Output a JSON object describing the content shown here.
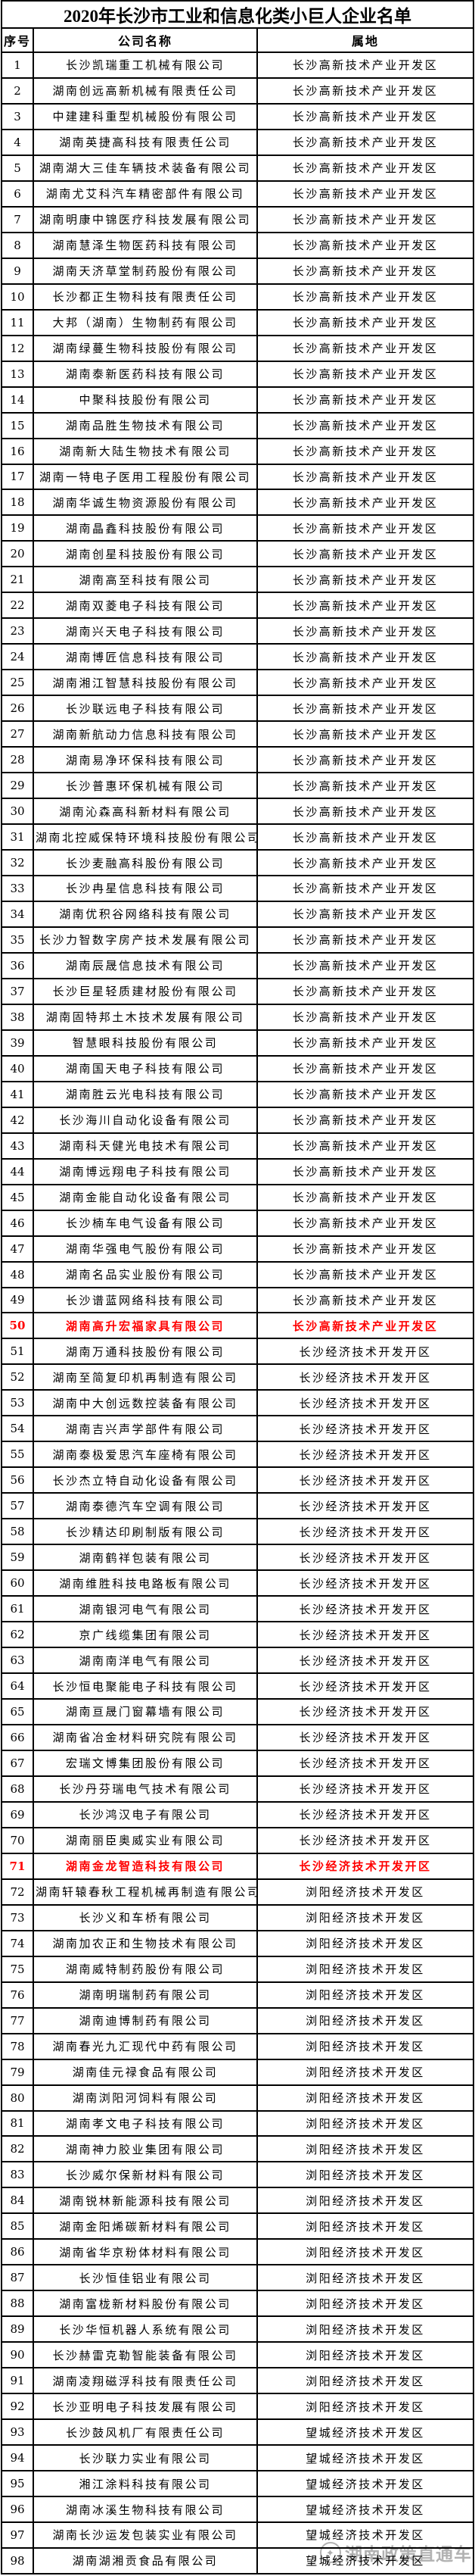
{
  "page": {
    "title": "2020年长沙市工业和信息化类小巨人企业名单"
  },
  "table": {
    "headers": {
      "no": "序号",
      "name": "公司名称",
      "location": "属地"
    },
    "rows": [
      {
        "no": "1",
        "name": "长沙凯瑞重工机械有限公司",
        "location": "长沙高新技术产业开发区",
        "red": false
      },
      {
        "no": "2",
        "name": "湖南创远高新机械有限责任公司",
        "location": "长沙高新技术产业开发区",
        "red": false
      },
      {
        "no": "3",
        "name": "中建建科重型机械股份有限公司",
        "location": "长沙高新技术产业开发区",
        "red": false
      },
      {
        "no": "4",
        "name": "湖南英捷高科技有限责任公司",
        "location": "长沙高新技术产业开发区",
        "red": false
      },
      {
        "no": "5",
        "name": "湖南湖大三佳车辆技术装备有限公司",
        "location": "长沙高新技术产业开发区",
        "red": false
      },
      {
        "no": "6",
        "name": "湖南尤艾科汽车精密部件有限公司",
        "location": "长沙高新技术产业开发区",
        "red": false
      },
      {
        "no": "7",
        "name": "湖南明康中锦医疗科技发展有限公司",
        "location": "长沙高新技术产业开发区",
        "red": false
      },
      {
        "no": "8",
        "name": "湖南慧泽生物医药科技有限公司",
        "location": "长沙高新技术产业开发区",
        "red": false
      },
      {
        "no": "9",
        "name": "湖南天济草堂制药股份有限公司",
        "location": "长沙高新技术产业开发区",
        "red": false
      },
      {
        "no": "10",
        "name": "长沙都正生物科技有限责任公司",
        "location": "长沙高新技术产业开发区",
        "red": false
      },
      {
        "no": "11",
        "name": "大邦（湖南）生物制药有限公司",
        "location": "长沙高新技术产业开发区",
        "red": false
      },
      {
        "no": "12",
        "name": "湖南绿蔓生物科技股份有限公司",
        "location": "长沙高新技术产业开发区",
        "red": false
      },
      {
        "no": "13",
        "name": "湖南泰新医药科技有限公司",
        "location": "长沙高新技术产业开发区",
        "red": false
      },
      {
        "no": "14",
        "name": "中聚科技股份有限公司",
        "location": "长沙高新技术产业开发区",
        "red": false
      },
      {
        "no": "15",
        "name": "湖南品胜生物技术有限公司",
        "location": "长沙高新技术产业开发区",
        "red": false
      },
      {
        "no": "16",
        "name": "湖南新大陆生物技术有限公司",
        "location": "长沙高新技术产业开发区",
        "red": false
      },
      {
        "no": "17",
        "name": "湖南一特电子医用工程股份有限公司",
        "location": "长沙高新技术产业开发区",
        "red": false
      },
      {
        "no": "18",
        "name": "湖南华诚生物资源股份有限公司",
        "location": "长沙高新技术产业开发区",
        "red": false
      },
      {
        "no": "19",
        "name": "湖南晶鑫科技股份有限公司",
        "location": "长沙高新技术产业开发区",
        "red": false
      },
      {
        "no": "20",
        "name": "湖南创星科技股份有限公司",
        "location": "长沙高新技术产业开发区",
        "red": false
      },
      {
        "no": "21",
        "name": "湖南高至科技有限公司",
        "location": "长沙高新技术产业开发区",
        "red": false
      },
      {
        "no": "22",
        "name": "湖南双菱电子科技有限公司",
        "location": "长沙高新技术产业开发区",
        "red": false
      },
      {
        "no": "23",
        "name": "湖南兴天电子科技有限公司",
        "location": "长沙高新技术产业开发区",
        "red": false
      },
      {
        "no": "24",
        "name": "湖南博匠信息科技有限公司",
        "location": "长沙高新技术产业开发区",
        "red": false
      },
      {
        "no": "25",
        "name": "湖南湘江智慧科技股份有限公司",
        "location": "长沙高新技术产业开发区",
        "red": false
      },
      {
        "no": "26",
        "name": "长沙联远电子科技有限公司",
        "location": "长沙高新技术产业开发区",
        "red": false
      },
      {
        "no": "27",
        "name": "湖南新航动力信息科技有限公司",
        "location": "长沙高新技术产业开发区",
        "red": false
      },
      {
        "no": "28",
        "name": "湖南易净环保科技有限公司",
        "location": "长沙高新技术产业开发区",
        "red": false
      },
      {
        "no": "29",
        "name": "长沙普惠环保机械有限公司",
        "location": "长沙高新技术产业开发区",
        "red": false
      },
      {
        "no": "30",
        "name": "湖南沁森高科新材料有限公司",
        "location": "长沙高新技术产业开发区",
        "red": false
      },
      {
        "no": "31",
        "name": "湖南北控威保特环境科技股份有限公司",
        "location": "长沙高新技术产业开发区",
        "red": false
      },
      {
        "no": "32",
        "name": "长沙麦融高科股份有限公司",
        "location": "长沙高新技术产业开发区",
        "red": false
      },
      {
        "no": "33",
        "name": "长沙冉星信息科技有限公司",
        "location": "长沙高新技术产业开发区",
        "red": false
      },
      {
        "no": "34",
        "name": "湖南优积谷网络科技有限公司",
        "location": "长沙高新技术产业开发区",
        "red": false
      },
      {
        "no": "35",
        "name": "长沙力智数字房产技术发展有限公司",
        "location": "长沙高新技术产业开发区",
        "red": false
      },
      {
        "no": "36",
        "name": "湖南辰晟信息技术有限公司",
        "location": "长沙高新技术产业开发区",
        "red": false
      },
      {
        "no": "37",
        "name": "长沙巨星轻质建材股份有限公司",
        "location": "长沙高新技术产业开发区",
        "red": false
      },
      {
        "no": "38",
        "name": "湖南固特邦土木技术发展有限公司",
        "location": "长沙高新技术产业开发区",
        "red": false
      },
      {
        "no": "39",
        "name": "智慧眼科技股份有限公司",
        "location": "长沙高新技术产业开发区",
        "red": false
      },
      {
        "no": "40",
        "name": "湖南国天电子科技有限公司",
        "location": "长沙高新技术产业开发区",
        "red": false
      },
      {
        "no": "41",
        "name": "湖南胜云光电科技有限公司",
        "location": "长沙高新技术产业开发区",
        "red": false
      },
      {
        "no": "42",
        "name": "长沙海川自动化设备有限公司",
        "location": "长沙高新技术产业开发区",
        "red": false
      },
      {
        "no": "43",
        "name": "湖南科天健光电技术有限公司",
        "location": "长沙高新技术产业开发区",
        "red": false
      },
      {
        "no": "44",
        "name": "湖南博远翔电子科技有限公司",
        "location": "长沙高新技术产业开发区",
        "red": false
      },
      {
        "no": "45",
        "name": "湖南金能自动化设备有限公司",
        "location": "长沙高新技术产业开发区",
        "red": false
      },
      {
        "no": "46",
        "name": "长沙楠车电气设备有限公司",
        "location": "长沙高新技术产业开发区",
        "red": false
      },
      {
        "no": "47",
        "name": "湖南华强电气股份有限公司",
        "location": "长沙高新技术产业开发区",
        "red": false
      },
      {
        "no": "48",
        "name": "湖南名品实业股份有限公司",
        "location": "长沙高新技术产业开发区",
        "red": false
      },
      {
        "no": "49",
        "name": "长沙谱蓝网络科技有限公司",
        "location": "长沙高新技术产业开发区",
        "red": false
      },
      {
        "no": "50",
        "name": "湖南高升宏福家具有限公司",
        "location": "长沙高新技术产业开发区",
        "red": true
      },
      {
        "no": "51",
        "name": "湖南万通科技股份有限公司",
        "location": "长沙经济技术开发开区",
        "red": false
      },
      {
        "no": "52",
        "name": "湖南至简复印机再制造有限公司",
        "location": "长沙经济技术开发开区",
        "red": false
      },
      {
        "no": "53",
        "name": "湖南中大创远数控装备有限公司",
        "location": "长沙经济技术开发开区",
        "red": false
      },
      {
        "no": "54",
        "name": "湖南吉兴声学部件有限公司",
        "location": "长沙经济技术开发开区",
        "red": false
      },
      {
        "no": "55",
        "name": "湖南泰极爱思汽车座椅有限公司",
        "location": "长沙经济技术开发开区",
        "red": false
      },
      {
        "no": "56",
        "name": "长沙杰立特自动化设备有限公司",
        "location": "长沙经济技术开发开区",
        "red": false
      },
      {
        "no": "57",
        "name": "湖南泰德汽车空调有限公司",
        "location": "长沙经济技术开发开区",
        "red": false
      },
      {
        "no": "58",
        "name": "长沙精达印刷制版有限公司",
        "location": "长沙经济技术开发开区",
        "red": false
      },
      {
        "no": "59",
        "name": "湖南鹤祥包装有限公司",
        "location": "长沙经济技术开发开区",
        "red": false
      },
      {
        "no": "60",
        "name": "湖南维胜科技电路板有限公司",
        "location": "长沙经济技术开发开区",
        "red": false
      },
      {
        "no": "61",
        "name": "湖南银河电气有限公司",
        "location": "长沙经济技术开发开区",
        "red": false
      },
      {
        "no": "62",
        "name": "京广线缆集团有限公司",
        "location": "长沙经济技术开发开区",
        "red": false
      },
      {
        "no": "63",
        "name": "湖南南洋电气有限公司",
        "location": "长沙经济技术开发开区",
        "red": false
      },
      {
        "no": "64",
        "name": "长沙恒电聚能电子科技有限公司",
        "location": "长沙经济技术开发开区",
        "red": false
      },
      {
        "no": "65",
        "name": "湖南亘晟门窗幕墙有限公司",
        "location": "长沙经济技术开发开区",
        "red": false
      },
      {
        "no": "66",
        "name": "湖南省冶金材料研究院有限公司",
        "location": "长沙经济技术开发开区",
        "red": false
      },
      {
        "no": "67",
        "name": "宏瑞文博集团股份有限公司",
        "location": "长沙经济技术开发开区",
        "red": false
      },
      {
        "no": "68",
        "name": "长沙丹芬瑞电气技术有限公司",
        "location": "长沙经济技术开发开区",
        "red": false
      },
      {
        "no": "69",
        "name": "长沙鸿汉电子有限公司",
        "location": "长沙经济技术开发开区",
        "red": false
      },
      {
        "no": "70",
        "name": "湖南丽臣奥威实业有限公司",
        "location": "长沙经济技术开发开区",
        "red": false
      },
      {
        "no": "71",
        "name": "湖南金龙智造科技有限公司",
        "location": "长沙经济技术开发开区",
        "red": true
      },
      {
        "no": "72",
        "name": "湖南轩辕春秋工程机械再制造有限公司",
        "location": "浏阳经济技术开发区",
        "red": false
      },
      {
        "no": "73",
        "name": "长沙义和车桥有限公司",
        "location": "浏阳经济技术开发区",
        "red": false
      },
      {
        "no": "74",
        "name": "湖南加农正和生物技术有限公司",
        "location": "浏阳经济技术开发区",
        "red": false
      },
      {
        "no": "75",
        "name": "湖南威特制药股份有限公司",
        "location": "浏阳经济技术开发区",
        "red": false
      },
      {
        "no": "76",
        "name": "湖南明瑞制药有限公司",
        "location": "浏阳经济技术开发区",
        "red": false
      },
      {
        "no": "77",
        "name": "湖南迪博制药有限公司",
        "location": "浏阳经济技术开发区",
        "red": false
      },
      {
        "no": "78",
        "name": "湖南春光九汇现代中药有限公司",
        "location": "浏阳经济技术开发区",
        "red": false
      },
      {
        "no": "79",
        "name": "湖南佳元禄食品有限公司",
        "location": "浏阳经济技术开发区",
        "red": false
      },
      {
        "no": "80",
        "name": "湖南浏阳河饲料有限公司",
        "location": "浏阳经济技术开发区",
        "red": false
      },
      {
        "no": "81",
        "name": "湖南孝文电子科技有限公司",
        "location": "浏阳经济技术开发区",
        "red": false
      },
      {
        "no": "82",
        "name": "湖南神力胶业集团有限公司",
        "location": "浏阳经济技术开发区",
        "red": false
      },
      {
        "no": "83",
        "name": "长沙威尔保新材料有限公司",
        "location": "浏阳经济技术开发区",
        "red": false
      },
      {
        "no": "84",
        "name": "湖南锐林新能源科技有限公司",
        "location": "浏阳经济技术开发区",
        "red": false
      },
      {
        "no": "85",
        "name": "湖南金阳烯碳新材料有限公司",
        "location": "浏阳经济技术开发区",
        "red": false
      },
      {
        "no": "86",
        "name": "湖南省华京粉体材料有限公司",
        "location": "浏阳经济技术开发区",
        "red": false
      },
      {
        "no": "87",
        "name": "长沙恒佳铝业有限公司",
        "location": "浏阳经济技术开发区",
        "red": false
      },
      {
        "no": "88",
        "name": "湖南富栊新材料股份有限公司",
        "location": "浏阳经济技术开发区",
        "red": false
      },
      {
        "no": "89",
        "name": "长沙华恒机器人系统有限公司",
        "location": "浏阳经济技术开发区",
        "red": false
      },
      {
        "no": "90",
        "name": "长沙赫雷克勒智能装备有限公司",
        "location": "浏阳经济技术开发区",
        "red": false
      },
      {
        "no": "91",
        "name": "湖南凌翔磁浮科技有限责任公司",
        "location": "浏阳经济技术开发区",
        "red": false
      },
      {
        "no": "92",
        "name": "长沙亚明电子科技发展有限公司",
        "location": "浏阳经济技术开发区",
        "red": false
      },
      {
        "no": "93",
        "name": "长沙鼓风机厂有限责任公司",
        "location": "望城经济技术开发区",
        "red": false
      },
      {
        "no": "94",
        "name": "长沙联力实业有限公司",
        "location": "望城经济技术开发区",
        "red": false
      },
      {
        "no": "95",
        "name": "湘江涂料科技有限公司",
        "location": "望城经济技术开发区",
        "red": false
      },
      {
        "no": "96",
        "name": "湖南冰溪生物科技有限公司",
        "location": "望城经济技术开发区",
        "red": false
      },
      {
        "no": "97",
        "name": "湖南长沙运发包装实业有限公司",
        "location": "望城经济技术开发区",
        "red": false
      },
      {
        "no": "98",
        "name": "湖南湖湘贡食品有限公司",
        "location": "望城经济技术开发区",
        "red": false
      }
    ]
  },
  "watermark": {
    "text": "湖南政策直通车",
    "logo_icon": "✦"
  },
  "colors": {
    "highlight_red": "#ff0000",
    "border_black": "#000000",
    "watermark_gray": "#a5a5a5"
  }
}
